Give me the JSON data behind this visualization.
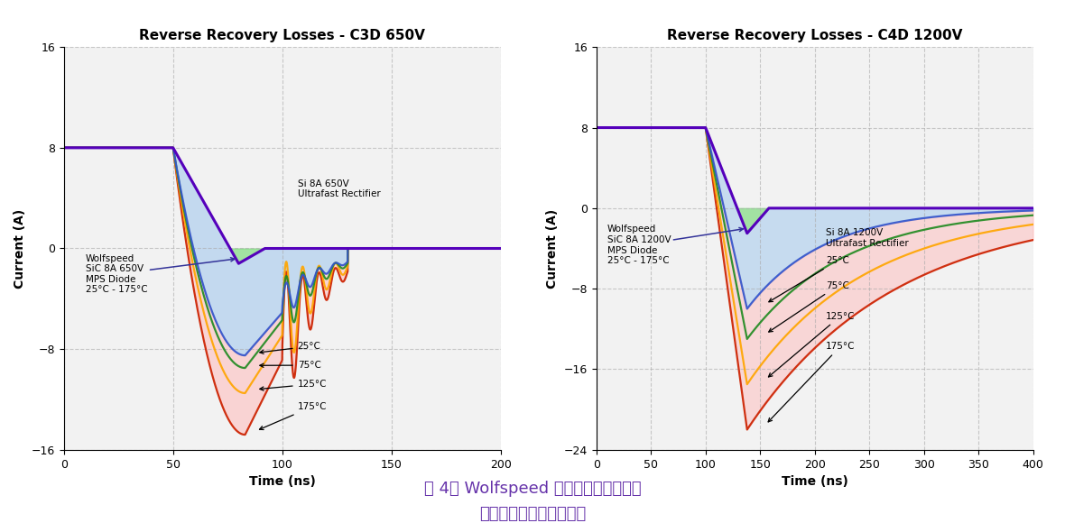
{
  "chart1": {
    "title": "Reverse Recovery Losses - C3D 650V",
    "xlabel": "Time (ns)",
    "ylabel": "Current (A)",
    "xlim": [
      0,
      200
    ],
    "ylim": [
      -16,
      16
    ],
    "yticks": [
      -16,
      -8,
      0,
      8,
      16
    ],
    "xticks": [
      0,
      50,
      100,
      150,
      200
    ],
    "sic_label": "Wolfspeed\nSiC 8A 650V\nMPS Diode\n25°C - 175°C",
    "si_label": "Si 8A 650V\nUltrafast Rectifier",
    "si_temps": [
      "25°C",
      "75°C",
      "125°C",
      "175°C"
    ]
  },
  "chart2": {
    "title": "Reverse Recovery Losses - C4D 1200V",
    "xlabel": "Time (ns)",
    "ylabel": "Current (A)",
    "xlim": [
      0,
      400
    ],
    "ylim": [
      -24,
      16
    ],
    "yticks": [
      -24,
      -16,
      -8,
      0,
      8,
      16
    ],
    "xticks": [
      0,
      50,
      100,
      150,
      200,
      250,
      300,
      350,
      400
    ],
    "sic_label": "Wolfspeed\nSiC 8A 1200V\nMPS Diode\n25°C - 175°C",
    "si_label": "Si 8A 1200V\nUltrafast Rectifier",
    "si_temps": [
      "25°C",
      "75°C",
      "125°C",
      "175°C"
    ]
  },
  "colors": {
    "sic_purple": "#5500BB",
    "si_25": "#3355CC",
    "si_75": "#228B22",
    "si_125": "#FFA500",
    "si_175": "#CC2200",
    "fill_sic": "#88DD88",
    "fill_si_25": "#AACCEE",
    "fill_si_175": "#FFBBBB",
    "grid": "#AAAAAA",
    "background": "#FFFFFF",
    "ax_bg": "#F2F2F2"
  },
  "caption_line1": "图 4： Wolfspeed 碳化硅肖特基二极管",
  "caption_line2": "可大幅降低反向恢复损耗"
}
